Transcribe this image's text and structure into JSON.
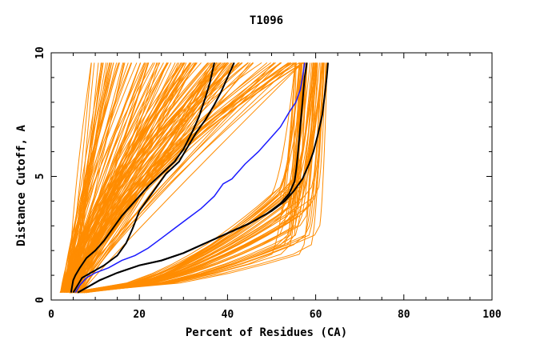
{
  "chart_data": {
    "type": "line",
    "title": "T1096",
    "xlabel": "Percent of Residues (CA)",
    "ylabel": "Distance Cutoff, A",
    "xlim": [
      0,
      100
    ],
    "ylim": [
      0,
      10
    ],
    "xticks": [
      "0",
      "20",
      "40",
      "60",
      "80",
      "100"
    ],
    "yticks": [
      "0",
      "5",
      "10"
    ],
    "grid": false,
    "colors": {
      "bundle": "#ff8c00",
      "highlight_black": "#000000",
      "highlight_blue": "#1a1aff"
    },
    "series": [
      {
        "color": "black",
        "x": [
          4.5,
          5,
          5.5,
          6.5,
          8,
          10,
          12,
          14,
          16,
          18,
          20,
          22,
          25,
          28,
          30,
          32,
          33.5,
          35,
          36,
          37
        ],
        "y": [
          0.3,
          0.8,
          1.0,
          1.3,
          1.7,
          2.0,
          2.4,
          2.9,
          3.4,
          3.8,
          4.2,
          4.6,
          5.1,
          5.6,
          6.1,
          6.8,
          7.4,
          8.2,
          8.8,
          9.6
        ]
      },
      {
        "color": "black",
        "x": [
          5,
          6,
          7,
          9,
          12,
          15,
          17,
          18.5,
          20,
          22,
          24,
          26,
          29,
          31,
          33,
          35,
          37,
          38.5,
          40,
          41.5
        ],
        "y": [
          0.3,
          0.6,
          0.9,
          1.1,
          1.4,
          1.8,
          2.3,
          2.9,
          3.6,
          4.1,
          4.6,
          5.1,
          5.6,
          6.2,
          6.8,
          7.3,
          7.9,
          8.4,
          9.0,
          9.6
        ]
      },
      {
        "color": "blue",
        "x": [
          5.5,
          6.5,
          8,
          10,
          13,
          16,
          19,
          22,
          25,
          28,
          31,
          34,
          37,
          39,
          41,
          44,
          47,
          50,
          52,
          54,
          55.5,
          56.5,
          57,
          57.5
        ],
        "y": [
          0.3,
          0.6,
          0.9,
          1.1,
          1.3,
          1.6,
          1.8,
          2.1,
          2.5,
          2.9,
          3.3,
          3.7,
          4.2,
          4.7,
          4.9,
          5.5,
          6.0,
          6.6,
          7.0,
          7.6,
          8.0,
          8.5,
          9.0,
          9.6
        ]
      },
      {
        "color": "black",
        "x": [
          6,
          8,
          11,
          15,
          20,
          25,
          30,
          35,
          40,
          45,
          49,
          52,
          54,
          55.2,
          55.6,
          56,
          56.5,
          57,
          57.5,
          58
        ],
        "y": [
          0.3,
          0.5,
          0.8,
          1.1,
          1.4,
          1.6,
          1.9,
          2.3,
          2.7,
          3.1,
          3.5,
          3.9,
          4.3,
          4.8,
          5.3,
          6.0,
          7.0,
          8.0,
          9.0,
          9.6
        ]
      },
      {
        "color": "black",
        "x": [
          6,
          8,
          11,
          15,
          20,
          25,
          30,
          35,
          40,
          45,
          50,
          53,
          55,
          57,
          58.5,
          59.5,
          60.5,
          61.5,
          62,
          62.5,
          62.8
        ],
        "y": [
          0.3,
          0.5,
          0.8,
          1.1,
          1.4,
          1.6,
          1.9,
          2.3,
          2.7,
          3.1,
          3.6,
          4.0,
          4.4,
          4.9,
          5.5,
          6.0,
          6.7,
          7.5,
          8.2,
          9.0,
          9.6
        ]
      }
    ]
  }
}
